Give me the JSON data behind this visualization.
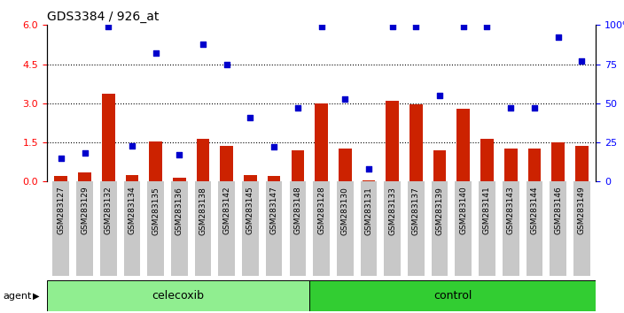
{
  "title": "GDS3384 / 926_at",
  "samples": [
    "GSM283127",
    "GSM283129",
    "GSM283132",
    "GSM283134",
    "GSM283135",
    "GSM283136",
    "GSM283138",
    "GSM283142",
    "GSM283145",
    "GSM283147",
    "GSM283148",
    "GSM283128",
    "GSM283130",
    "GSM283131",
    "GSM283133",
    "GSM283137",
    "GSM283139",
    "GSM283140",
    "GSM283141",
    "GSM283143",
    "GSM283144",
    "GSM283146",
    "GSM283149"
  ],
  "transformed_count": [
    0.2,
    0.35,
    3.35,
    0.25,
    1.55,
    0.15,
    1.65,
    1.35,
    0.25,
    0.2,
    1.2,
    3.0,
    1.25,
    0.05,
    3.1,
    2.95,
    1.2,
    2.8,
    1.65,
    1.25,
    1.25,
    1.5,
    1.35
  ],
  "percentile_rank": [
    15,
    18,
    99,
    23,
    82,
    17,
    88,
    75,
    41,
    22,
    47,
    99,
    53,
    8,
    99,
    99,
    55,
    99,
    99,
    47,
    47,
    92,
    77
  ],
  "celecoxib_count": 11,
  "control_count": 12,
  "bar_color": "#cc2200",
  "dot_color": "#0000cc",
  "ylim_left": [
    0,
    6
  ],
  "ylim_right": [
    0,
    100
  ],
  "yticks_left": [
    0,
    1.5,
    3.0,
    4.5,
    6
  ],
  "yticks_right": [
    0,
    25,
    50,
    75,
    100
  ],
  "hlines": [
    1.5,
    3.0,
    4.5
  ],
  "celecoxib_color": "#90ee90",
  "control_color": "#32cd32",
  "xticklabel_bg": "#d0d0d0"
}
